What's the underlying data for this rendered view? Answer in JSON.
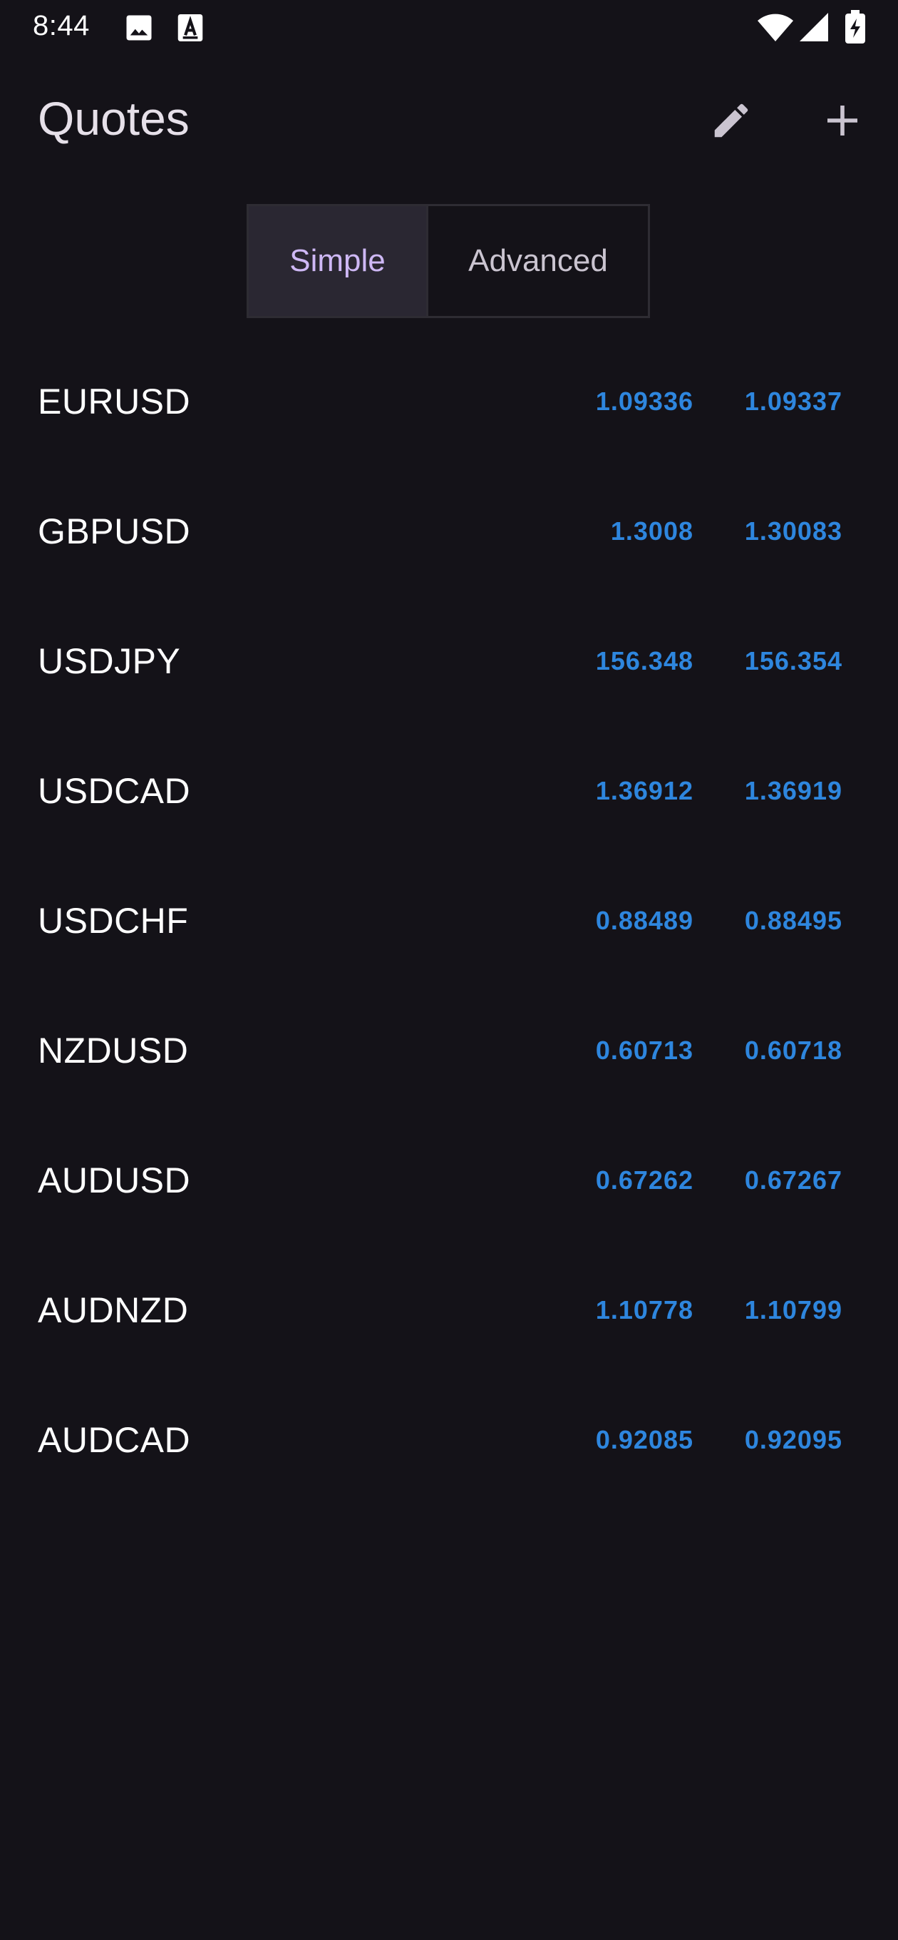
{
  "status_bar": {
    "time": "8:44",
    "icons": [
      "image-icon",
      "a-box-icon",
      "wifi-icon",
      "signal-icon",
      "battery-charging-icon"
    ]
  },
  "app_bar": {
    "title": "Quotes",
    "actions": [
      {
        "icon": "pencil-icon",
        "label": "Edit"
      },
      {
        "icon": "plus-icon",
        "label": "Add"
      }
    ]
  },
  "view_toggle": {
    "options": [
      "Simple",
      "Advanced"
    ],
    "selected": "Simple"
  },
  "quotes": [
    {
      "symbol": "EURUSD",
      "bid": "1.09336",
      "ask": "1.09337"
    },
    {
      "symbol": "GBPUSD",
      "bid": "1.3008",
      "ask": "1.30083"
    },
    {
      "symbol": "USDJPY",
      "bid": "156.348",
      "ask": "156.354"
    },
    {
      "symbol": "USDCAD",
      "bid": "1.36912",
      "ask": "1.36919"
    },
    {
      "symbol": "USDCHF",
      "bid": "0.88489",
      "ask": "0.88495"
    },
    {
      "symbol": "NZDUSD",
      "bid": "0.60713",
      "ask": "0.60718"
    },
    {
      "symbol": "AUDUSD",
      "bid": "0.67262",
      "ask": "0.67267"
    },
    {
      "symbol": "AUDNZD",
      "bid": "1.10778",
      "ask": "1.10799"
    },
    {
      "symbol": "AUDCAD",
      "bid": "0.92085",
      "ask": "0.92095"
    }
  ],
  "colors": {
    "background": "#141218",
    "price": "#2E86DE",
    "selected_segment_text": "#CEB8F5",
    "selected_segment_bg": "#2A2732"
  }
}
